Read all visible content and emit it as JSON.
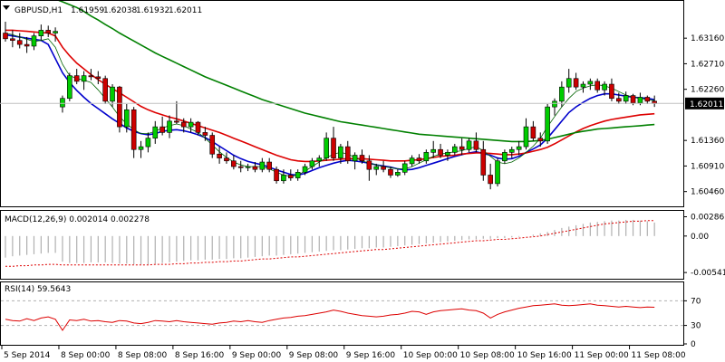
{
  "chart_data": {
    "type": "candlestick",
    "symbol_header": "GBPUSD,H1",
    "ohlc_readout": [
      "1.61959",
      "1.62038",
      "1.61932",
      "1.62011"
    ],
    "last_price_label": "1.62011",
    "price_axis": {
      "ylim": [
        1.602,
        1.638
      ],
      "ticks": [
        "1.63160",
        "1.62710",
        "1.62260",
        "1.61360",
        "1.60910",
        "1.60460"
      ]
    },
    "time_axis": {
      "labels": [
        "5 Sep 2014",
        "8 Sep 00:00",
        "8 Sep 08:00",
        "8 Sep 16:00",
        "9 Sep 00:00",
        "9 Sep 08:00",
        "9 Sep 16:00",
        "10 Sep 00:00",
        "10 Sep 08:00",
        "10 Sep 16:00",
        "11 Sep 00:00",
        "11 Sep 08:00"
      ],
      "bar_index": [
        0,
        8,
        16,
        24,
        32,
        40,
        48,
        56,
        64,
        72,
        80,
        88
      ]
    },
    "candles": [
      [
        1.6325,
        1.6345,
        1.631,
        1.6315
      ],
      [
        1.6315,
        1.633,
        1.63,
        1.6312
      ],
      [
        1.6312,
        1.6325,
        1.6298,
        1.6305
      ],
      [
        1.6305,
        1.6318,
        1.629,
        1.6302
      ],
      [
        1.6302,
        1.6325,
        1.6295,
        1.632
      ],
      [
        1.632,
        1.634,
        1.6312,
        1.633
      ],
      [
        1.633,
        1.6338,
        1.6318,
        1.6325
      ],
      [
        1.6325,
        1.6335,
        1.631,
        1.6328
      ],
      [
        1.6195,
        1.6215,
        1.6185,
        1.621
      ],
      [
        1.621,
        1.6255,
        1.6205,
        1.625
      ],
      [
        1.625,
        1.6262,
        1.6235,
        1.624
      ],
      [
        1.624,
        1.6258,
        1.6225,
        1.625
      ],
      [
        1.625,
        1.6262,
        1.6242,
        1.6248
      ],
      [
        1.6248,
        1.6258,
        1.6235,
        1.6245
      ],
      [
        1.6245,
        1.625,
        1.62,
        1.6205
      ],
      [
        1.6205,
        1.6235,
        1.6195,
        1.623
      ],
      [
        1.623,
        1.6232,
        1.615,
        1.616
      ],
      [
        1.616,
        1.62,
        1.615,
        1.619
      ],
      [
        1.619,
        1.6195,
        1.6105,
        1.612
      ],
      [
        1.612,
        1.6135,
        1.6105,
        1.6125
      ],
      [
        1.6125,
        1.615,
        1.6115,
        1.614
      ],
      [
        1.614,
        1.617,
        1.613,
        1.616
      ],
      [
        1.616,
        1.6178,
        1.6145,
        1.615
      ],
      [
        1.615,
        1.618,
        1.614,
        1.617
      ],
      [
        1.617,
        1.6205,
        1.6165,
        1.6168
      ],
      [
        1.6168,
        1.6175,
        1.615,
        1.616
      ],
      [
        1.616,
        1.6175,
        1.615,
        1.6168
      ],
      [
        1.6168,
        1.617,
        1.6145,
        1.615
      ],
      [
        1.615,
        1.616,
        1.6135,
        1.6145
      ],
      [
        1.6145,
        1.615,
        1.6105,
        1.6112
      ],
      [
        1.6112,
        1.6125,
        1.6095,
        1.6105
      ],
      [
        1.6105,
        1.6115,
        1.6095,
        1.61
      ],
      [
        1.61,
        1.611,
        1.6085,
        1.609
      ],
      [
        1.609,
        1.61,
        1.608,
        1.6088
      ],
      [
        1.6088,
        1.6095,
        1.6082,
        1.609
      ],
      [
        1.609,
        1.6098,
        1.608,
        1.6085
      ],
      [
        1.6085,
        1.6105,
        1.608,
        1.6098
      ],
      [
        1.6098,
        1.6105,
        1.608,
        1.6085
      ],
      [
        1.6085,
        1.609,
        1.606,
        1.6065
      ],
      [
        1.6065,
        1.6085,
        1.606,
        1.6075
      ],
      [
        1.6075,
        1.6085,
        1.6065,
        1.607
      ],
      [
        1.607,
        1.6085,
        1.6065,
        1.608
      ],
      [
        1.608,
        1.6095,
        1.6075,
        1.609
      ],
      [
        1.609,
        1.6105,
        1.6085,
        1.61
      ],
      [
        1.61,
        1.611,
        1.609,
        1.6105
      ],
      [
        1.6105,
        1.615,
        1.61,
        1.614
      ],
      [
        1.614,
        1.616,
        1.61,
        1.6105
      ],
      [
        1.6105,
        1.613,
        1.6095,
        1.6125
      ],
      [
        1.6125,
        1.6135,
        1.6095,
        1.61
      ],
      [
        1.61,
        1.6115,
        1.6085,
        1.611
      ],
      [
        1.611,
        1.612,
        1.6095,
        1.61
      ],
      [
        1.61,
        1.611,
        1.6065,
        1.6085
      ],
      [
        1.6085,
        1.6095,
        1.6075,
        1.609
      ],
      [
        1.609,
        1.61,
        1.608,
        1.6085
      ],
      [
        1.6085,
        1.609,
        1.607,
        1.6075
      ],
      [
        1.6075,
        1.6085,
        1.6072,
        1.608
      ],
      [
        1.608,
        1.61,
        1.6075,
        1.6095
      ],
      [
        1.6095,
        1.611,
        1.609,
        1.6105
      ],
      [
        1.6105,
        1.6112,
        1.6095,
        1.61
      ],
      [
        1.61,
        1.612,
        1.6095,
        1.6115
      ],
      [
        1.6115,
        1.6135,
        1.6105,
        1.612
      ],
      [
        1.612,
        1.613,
        1.6105,
        1.611
      ],
      [
        1.611,
        1.612,
        1.61,
        1.6115
      ],
      [
        1.6115,
        1.613,
        1.611,
        1.6125
      ],
      [
        1.6125,
        1.614,
        1.611,
        1.612
      ],
      [
        1.612,
        1.614,
        1.6115,
        1.6135
      ],
      [
        1.6135,
        1.615,
        1.6115,
        1.612
      ],
      [
        1.612,
        1.6135,
        1.6065,
        1.6075
      ],
      [
        1.6075,
        1.6095,
        1.605,
        1.606
      ],
      [
        1.606,
        1.6105,
        1.6055,
        1.61
      ],
      [
        1.61,
        1.612,
        1.6095,
        1.6115
      ],
      [
        1.6115,
        1.6125,
        1.6105,
        1.612
      ],
      [
        1.612,
        1.6135,
        1.611,
        1.6125
      ],
      [
        1.6125,
        1.6175,
        1.612,
        1.616
      ],
      [
        1.616,
        1.617,
        1.6135,
        1.614
      ],
      [
        1.614,
        1.615,
        1.6125,
        1.6135
      ],
      [
        1.6135,
        1.62,
        1.613,
        1.6195
      ],
      [
        1.6195,
        1.621,
        1.618,
        1.6205
      ],
      [
        1.6205,
        1.624,
        1.6195,
        1.623
      ],
      [
        1.623,
        1.6262,
        1.622,
        1.6245
      ],
      [
        1.6245,
        1.6255,
        1.6225,
        1.623
      ],
      [
        1.623,
        1.624,
        1.622,
        1.6235
      ],
      [
        1.6235,
        1.6245,
        1.6225,
        1.624
      ],
      [
        1.624,
        1.6245,
        1.622,
        1.6225
      ],
      [
        1.6225,
        1.624,
        1.6215,
        1.6235
      ],
      [
        1.6235,
        1.6245,
        1.6205,
        1.621
      ],
      [
        1.621,
        1.622,
        1.62,
        1.6205
      ],
      [
        1.6205,
        1.6222,
        1.62,
        1.6215
      ],
      [
        1.6215,
        1.6218,
        1.6198,
        1.6202
      ],
      [
        1.6202,
        1.622,
        1.6198,
        1.6212
      ],
      [
        1.6212,
        1.6215,
        1.62,
        1.6205
      ],
      [
        1.6205,
        1.6215,
        1.6195,
        1.6201
      ]
    ],
    "overlays": [
      {
        "color": "#0000cc",
        "width": 1.6,
        "values": [
          1.6322,
          1.632,
          1.6318,
          1.6316,
          1.6314,
          1.6312,
          1.6305,
          1.628,
          1.6255,
          1.6238,
          1.6224,
          1.6212,
          1.6201,
          1.6192,
          1.6183,
          1.6174,
          1.6166,
          1.6158,
          1.6152,
          1.6148,
          1.6146,
          1.6148,
          1.6152,
          1.6154,
          1.6155,
          1.6153,
          1.615,
          1.6146,
          1.6141,
          1.6134,
          1.6126,
          1.6118,
          1.611,
          1.6104,
          1.6099,
          1.6096,
          1.6093,
          1.6089,
          1.6084,
          1.608,
          1.6076,
          1.6075,
          1.6078,
          1.6083,
          1.6088,
          1.6092,
          1.6096,
          1.6099,
          1.6101,
          1.61,
          1.6098,
          1.6096,
          1.6093,
          1.6091,
          1.6089,
          1.6086,
          1.6084,
          1.6085,
          1.6088,
          1.6092,
          1.6096,
          1.61,
          1.6104,
          1.6108,
          1.6111,
          1.6114,
          1.6116,
          1.6113,
          1.611,
          1.6105,
          1.6103,
          1.6104,
          1.6108,
          1.6115,
          1.6121,
          1.6128,
          1.614,
          1.6155,
          1.617,
          1.6185,
          1.6195,
          1.6203,
          1.621,
          1.6215,
          1.6218,
          1.6218,
          1.6216,
          1.6214,
          1.6212,
          1.6211,
          1.621,
          1.6208
        ]
      },
      {
        "color": "#dd0000",
        "width": 1.6,
        "values": [
          1.633,
          1.633,
          1.6329,
          1.6328,
          1.6327,
          1.6326,
          1.6325,
          1.632,
          1.63,
          1.6285,
          1.6272,
          1.6262,
          1.6252,
          1.6243,
          1.6235,
          1.6227,
          1.622,
          1.6212,
          1.6204,
          1.6196,
          1.619,
          1.6185,
          1.6181,
          1.6177,
          1.6174,
          1.617,
          1.6166,
          1.6162,
          1.6158,
          1.6154,
          1.615,
          1.6145,
          1.614,
          1.6135,
          1.613,
          1.6125,
          1.612,
          1.6115,
          1.611,
          1.6106,
          1.6102,
          1.61,
          1.6099,
          1.6099,
          1.61,
          1.6101,
          1.6102,
          1.6103,
          1.6104,
          1.6104,
          1.6104,
          1.6103,
          1.6102,
          1.6101,
          1.61,
          1.61,
          1.61,
          1.6101,
          1.6102,
          1.6104,
          1.6106,
          1.6108,
          1.6109,
          1.611,
          1.6112,
          1.6113,
          1.6114,
          1.6114,
          1.6113,
          1.6112,
          1.6111,
          1.6111,
          1.6112,
          1.6114,
          1.6117,
          1.612,
          1.6124,
          1.613,
          1.6137,
          1.6144,
          1.6151,
          1.6157,
          1.6162,
          1.6166,
          1.617,
          1.6173,
          1.6175,
          1.6177,
          1.6179,
          1.6181,
          1.6182,
          1.6183
        ]
      },
      {
        "color": "#008000",
        "width": 1.6,
        "values": [
          1.642,
          1.6415,
          1.641,
          1.6405,
          1.64,
          1.6395,
          1.639,
          1.6385,
          1.638,
          1.6375,
          1.637,
          1.6363,
          1.6355,
          1.6348,
          1.634,
          1.6333,
          1.6325,
          1.6318,
          1.6311,
          1.6304,
          1.6297,
          1.629,
          1.6284,
          1.6278,
          1.6272,
          1.6266,
          1.626,
          1.6254,
          1.6248,
          1.6243,
          1.6238,
          1.6233,
          1.6228,
          1.6223,
          1.6218,
          1.6213,
          1.6208,
          1.6204,
          1.62,
          1.6196,
          1.6192,
          1.6188,
          1.6184,
          1.6181,
          1.6178,
          1.6175,
          1.6172,
          1.6169,
          1.6167,
          1.6165,
          1.6163,
          1.6161,
          1.6159,
          1.6157,
          1.6155,
          1.6153,
          1.6151,
          1.6149,
          1.6147,
          1.6146,
          1.6145,
          1.6144,
          1.6143,
          1.6142,
          1.6141,
          1.614,
          1.6139,
          1.6138,
          1.6137,
          1.6136,
          1.6135,
          1.6134,
          1.6134,
          1.6134,
          1.6135,
          1.6136,
          1.6138,
          1.6141,
          1.6144,
          1.6147,
          1.615,
          1.6152,
          1.6154,
          1.6156,
          1.6157,
          1.6158,
          1.6159,
          1.616,
          1.6161,
          1.6162,
          1.6163,
          1.6164
        ]
      },
      {
        "color": "#006400",
        "width": 0.8,
        "values": [
          1.6325,
          1.6322,
          1.6318,
          1.6314,
          1.631,
          1.6312,
          1.6315,
          1.63,
          1.627,
          1.625,
          1.6245,
          1.6242,
          1.6238,
          1.6225,
          1.621,
          1.6195,
          1.6178,
          1.6165,
          1.6155,
          1.6148,
          1.6148,
          1.6152,
          1.6158,
          1.6162,
          1.6165,
          1.6162,
          1.6156,
          1.615,
          1.614,
          1.6128,
          1.6116,
          1.6106,
          1.6098,
          1.6093,
          1.609,
          1.609,
          1.609,
          1.6086,
          1.608,
          1.6075,
          1.6073,
          1.6075,
          1.6082,
          1.609,
          1.6098,
          1.6105,
          1.6112,
          1.6115,
          1.6112,
          1.6106,
          1.61,
          1.6096,
          1.6093,
          1.609,
          1.6088,
          1.6086,
          1.6086,
          1.609,
          1.6096,
          1.6102,
          1.6108,
          1.6112,
          1.6114,
          1.6116,
          1.6118,
          1.6122,
          1.6125,
          1.6118,
          1.6108,
          1.6098,
          1.6095,
          1.6098,
          1.6105,
          1.6115,
          1.6126,
          1.614,
          1.616,
          1.6178,
          1.6195,
          1.621,
          1.6222,
          1.6228,
          1.6232,
          1.6234,
          1.6232,
          1.6228,
          1.6222,
          1.6216,
          1.6212,
          1.621,
          1.6208,
          1.6206
        ]
      }
    ],
    "macd": {
      "label": "MACD(12,26,9) 0.002014 0.002278",
      "ylim": [
        -0.0062,
        0.0036
      ],
      "ticks": [
        "0.00286",
        "0.00",
        "-0.005414"
      ],
      "histogram": [
        -0.0032,
        -0.003,
        -0.0029,
        -0.0028,
        -0.0027,
        -0.0026,
        -0.0025,
        -0.0025,
        -0.0038,
        -0.004,
        -0.004,
        -0.004,
        -0.0039,
        -0.0039,
        -0.0039,
        -0.004,
        -0.0041,
        -0.0041,
        -0.0042,
        -0.0042,
        -0.0042,
        -0.0041,
        -0.004,
        -0.0039,
        -0.0038,
        -0.0037,
        -0.0036,
        -0.0036,
        -0.0035,
        -0.0035,
        -0.0034,
        -0.0034,
        -0.0033,
        -0.0033,
        -0.0032,
        -0.0031,
        -0.003,
        -0.0029,
        -0.0029,
        -0.0028,
        -0.0027,
        -0.0026,
        -0.0025,
        -0.0024,
        -0.0023,
        -0.0022,
        -0.0021,
        -0.0021,
        -0.002,
        -0.0019,
        -0.0018,
        -0.0018,
        -0.0017,
        -0.0017,
        -0.0016,
        -0.0015,
        -0.0014,
        -0.0013,
        -0.0012,
        -0.0011,
        -0.001,
        -0.0009,
        -0.0008,
        -0.0007,
        -0.0006,
        -0.0005,
        -0.0005,
        -0.0004,
        -0.0004,
        -0.0003,
        -0.0003,
        -0.0002,
        -0.0001,
        0.0,
        0.0002,
        0.0004,
        0.0006,
        0.0009,
        0.0012,
        0.0014,
        0.0016,
        0.0018,
        0.002,
        0.0021,
        0.0022,
        0.0023,
        0.0023,
        0.0024,
        0.0024,
        0.0023,
        0.0022,
        0.002
      ],
      "signal": [
        -0.0045,
        -0.0045,
        -0.0044,
        -0.0044,
        -0.0043,
        -0.0043,
        -0.0042,
        -0.0042,
        -0.0043,
        -0.0043,
        -0.0043,
        -0.0043,
        -0.0043,
        -0.0043,
        -0.0043,
        -0.0043,
        -0.0043,
        -0.0043,
        -0.0043,
        -0.0043,
        -0.0043,
        -0.0042,
        -0.0042,
        -0.0042,
        -0.0041,
        -0.0041,
        -0.004,
        -0.004,
        -0.0039,
        -0.0039,
        -0.0038,
        -0.0038,
        -0.0037,
        -0.0037,
        -0.0036,
        -0.0035,
        -0.0034,
        -0.0034,
        -0.0033,
        -0.0032,
        -0.0031,
        -0.0031,
        -0.003,
        -0.0029,
        -0.0028,
        -0.0027,
        -0.0026,
        -0.0025,
        -0.0024,
        -0.0023,
        -0.0022,
        -0.0021,
        -0.002,
        -0.002,
        -0.0019,
        -0.0018,
        -0.0017,
        -0.0016,
        -0.0015,
        -0.0014,
        -0.0013,
        -0.0012,
        -0.0011,
        -0.001,
        -0.0009,
        -0.0008,
        -0.0007,
        -0.0007,
        -0.0006,
        -0.0005,
        -0.0005,
        -0.0004,
        -0.0003,
        -0.0002,
        -0.0001,
        0.0,
        0.0002,
        0.0004,
        0.0006,
        0.0008,
        0.001,
        0.0012,
        0.0014,
        0.0016,
        0.0018,
        0.0019,
        0.002,
        0.0021,
        0.0022,
        0.0022,
        0.0023,
        0.0023
      ]
    },
    "rsi": {
      "label": "RSI(14) 59.5643",
      "ylim": [
        0,
        100
      ],
      "levels": [
        70,
        30
      ],
      "ticks": [
        "70",
        "30",
        "0"
      ],
      "values": [
        40,
        38,
        37,
        41,
        38,
        42,
        44,
        40,
        22,
        39,
        38,
        40,
        37,
        38,
        36,
        35,
        38,
        37,
        34,
        33,
        35,
        38,
        37,
        36,
        38,
        36,
        35,
        34,
        33,
        32,
        34,
        35,
        37,
        36,
        38,
        36,
        35,
        38,
        40,
        42,
        43,
        45,
        46,
        48,
        50,
        52,
        55,
        53,
        50,
        48,
        46,
        45,
        44,
        45,
        47,
        48,
        50,
        53,
        52,
        48,
        52,
        54,
        55,
        56,
        57,
        55,
        54,
        50,
        42,
        48,
        52,
        55,
        58,
        60,
        62,
        63,
        64,
        65,
        63,
        62,
        63,
        64,
        65,
        63,
        62,
        61,
        60,
        61,
        60,
        59,
        60,
        59.5643
      ]
    }
  }
}
